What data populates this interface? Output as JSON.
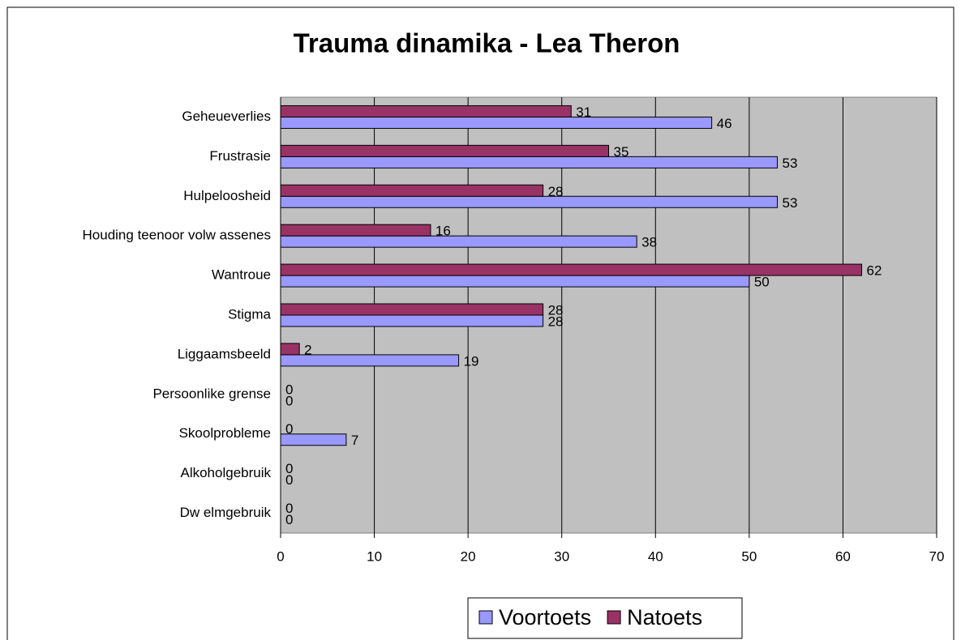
{
  "chart_data": {
    "type": "bar",
    "orientation": "horizontal",
    "title": "Trauma dinamika - Lea Theron",
    "categories": [
      "Geheueverlies",
      "Frustrasie",
      "Hulpeloosheid",
      "Houding teenoor volw assenes",
      "Wantroue",
      "Stigma",
      "Liggaamsbeeld",
      "Persoonlike grense",
      "Skoolprobleme",
      "Alkoholgebruik",
      "Dw elmgebruik"
    ],
    "series": [
      {
        "name": "Voortoets",
        "color": "#9999ff",
        "values": [
          46,
          53,
          53,
          38,
          50,
          28,
          19,
          0,
          7,
          0,
          0
        ]
      },
      {
        "name": "Natoets",
        "color": "#993366",
        "values": [
          31,
          35,
          28,
          16,
          62,
          28,
          2,
          0,
          0,
          0,
          0
        ]
      }
    ],
    "xlim": [
      0,
      70
    ],
    "xticks": [
      0,
      10,
      20,
      30,
      40,
      50,
      60,
      70
    ],
    "grid": true,
    "legend": "bottom"
  }
}
